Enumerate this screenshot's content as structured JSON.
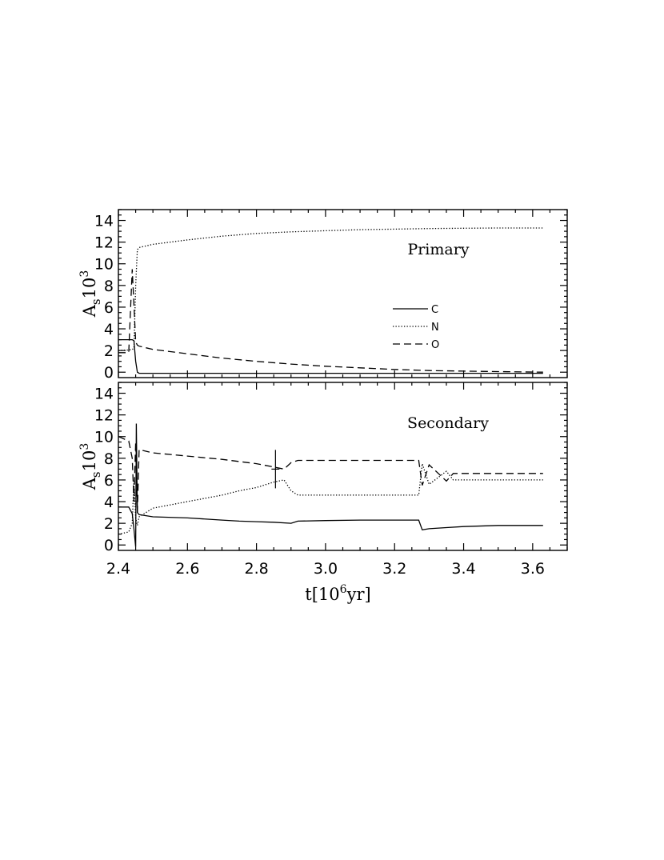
{
  "chart_data": [
    {
      "type": "line",
      "panel_label": "Primary",
      "ylabel": "A",
      "ylabel_sub": "s",
      "ylabel_tail": "10",
      "ylabel_sup": "3",
      "xlim": [
        2.4,
        3.7
      ],
      "ylim": [
        -0.5,
        15
      ],
      "yticks": [
        "0",
        "2",
        "4",
        "6",
        "8",
        "10",
        "12",
        "14"
      ],
      "ytick_values": [
        0,
        2,
        4,
        6,
        8,
        10,
        12,
        14
      ],
      "legend": {
        "position": "center-right",
        "entries": [
          {
            "name": "C",
            "style": "solid"
          },
          {
            "name": "N",
            "style": "dotted"
          },
          {
            "name": "O",
            "style": "dashed"
          }
        ]
      },
      "series": [
        {
          "name": "C",
          "style": "solid",
          "x": [
            2.4,
            2.44,
            2.445,
            2.45,
            2.455,
            2.46,
            3.63
          ],
          "y": [
            3.0,
            3.0,
            2.9,
            1.0,
            0.0,
            -0.1,
            -0.1
          ]
        },
        {
          "name": "N",
          "style": "dotted",
          "x": [
            2.4,
            2.43,
            2.44,
            2.445,
            2.45,
            2.455,
            2.46,
            2.5,
            2.6,
            2.7,
            2.8,
            2.9,
            3.0,
            3.1,
            3.2,
            3.3,
            3.4,
            3.5,
            3.63
          ],
          "y": [
            2.0,
            2.05,
            2.1,
            2.2,
            8.0,
            11.3,
            11.5,
            11.8,
            12.2,
            12.55,
            12.8,
            12.95,
            13.05,
            13.15,
            13.2,
            13.25,
            13.28,
            13.3,
            13.3
          ]
        },
        {
          "name": "O",
          "style": "dashed",
          "x": [
            2.4,
            2.43,
            2.44,
            2.45,
            2.455,
            2.46,
            2.5,
            2.6,
            2.7,
            2.8,
            2.9,
            3.0,
            3.1,
            3.2,
            3.3,
            3.4,
            3.5,
            3.63
          ],
          "y": [
            1.8,
            1.8,
            9.5,
            2.8,
            2.5,
            2.4,
            2.1,
            1.7,
            1.3,
            1.0,
            0.75,
            0.55,
            0.4,
            0.25,
            0.15,
            0.1,
            0.05,
            0.0
          ]
        }
      ]
    },
    {
      "type": "line",
      "panel_label": "Secondary",
      "ylabel": "A",
      "ylabel_sub": "s",
      "ylabel_tail": "10",
      "ylabel_sup": "3",
      "xlabel": "t[10",
      "xlabel_sup": "6",
      "xlabel_tail": "yr]",
      "xlim": [
        2.4,
        3.7
      ],
      "ylim": [
        -0.5,
        15
      ],
      "xticks": [
        "2.4",
        "2.6",
        "2.8",
        "3.0",
        "3.2",
        "3.4",
        "3.6"
      ],
      "xtick_values": [
        2.4,
        2.6,
        2.8,
        3.0,
        3.2,
        3.4,
        3.6
      ],
      "yticks": [
        "0",
        "2",
        "4",
        "6",
        "8",
        "10",
        "12",
        "14"
      ],
      "ytick_values": [
        0,
        2,
        4,
        6,
        8,
        10,
        12,
        14
      ],
      "series": [
        {
          "name": "C",
          "style": "solid",
          "x": [
            2.4,
            2.43,
            2.44,
            2.445,
            2.45,
            2.452,
            2.455,
            2.46,
            2.5,
            2.6,
            2.7,
            2.75,
            2.8,
            2.85,
            2.9,
            2.92,
            3.0,
            3.1,
            3.27,
            3.28,
            3.3,
            3.35,
            3.4,
            3.5,
            3.63
          ],
          "y": [
            3.5,
            3.5,
            2.9,
            1.5,
            -0.2,
            11.2,
            3.0,
            2.8,
            2.6,
            2.5,
            2.3,
            2.2,
            2.15,
            2.1,
            2.0,
            2.2,
            2.25,
            2.3,
            2.3,
            1.4,
            1.5,
            1.6,
            1.7,
            1.8,
            1.8
          ]
        },
        {
          "name": "N",
          "style": "dotted",
          "x": [
            2.4,
            2.43,
            2.44,
            2.445,
            2.45,
            2.455,
            2.46,
            2.5,
            2.6,
            2.7,
            2.75,
            2.8,
            2.85,
            2.88,
            2.9,
            2.92,
            3.0,
            3.1,
            3.27,
            3.28,
            3.3,
            3.35,
            3.37,
            3.4,
            3.5,
            3.63
          ],
          "y": [
            1.0,
            1.2,
            2.0,
            6.0,
            2.5,
            1.8,
            2.6,
            3.4,
            4.0,
            4.6,
            5.0,
            5.3,
            5.8,
            6.0,
            5.0,
            4.6,
            4.6,
            4.6,
            4.6,
            7.5,
            5.6,
            6.8,
            6.0,
            6.0,
            6.0,
            6.0
          ]
        },
        {
          "name": "O",
          "style": "dashed",
          "x": [
            2.4,
            2.43,
            2.44,
            2.445,
            2.45,
            2.455,
            2.46,
            2.5,
            2.6,
            2.7,
            2.75,
            2.8,
            2.85,
            2.88,
            2.9,
            2.92,
            3.0,
            3.1,
            3.27,
            3.28,
            3.3,
            3.35,
            3.37,
            3.4,
            3.5,
            3.63
          ],
          "y": [
            10.0,
            9.6,
            8.0,
            4.0,
            9.5,
            3.0,
            8.8,
            8.5,
            8.2,
            7.9,
            7.7,
            7.5,
            7.2,
            7.0,
            7.6,
            7.8,
            7.8,
            7.8,
            7.8,
            5.5,
            7.4,
            5.9,
            6.6,
            6.6,
            6.6,
            6.6
          ]
        }
      ]
    }
  ]
}
